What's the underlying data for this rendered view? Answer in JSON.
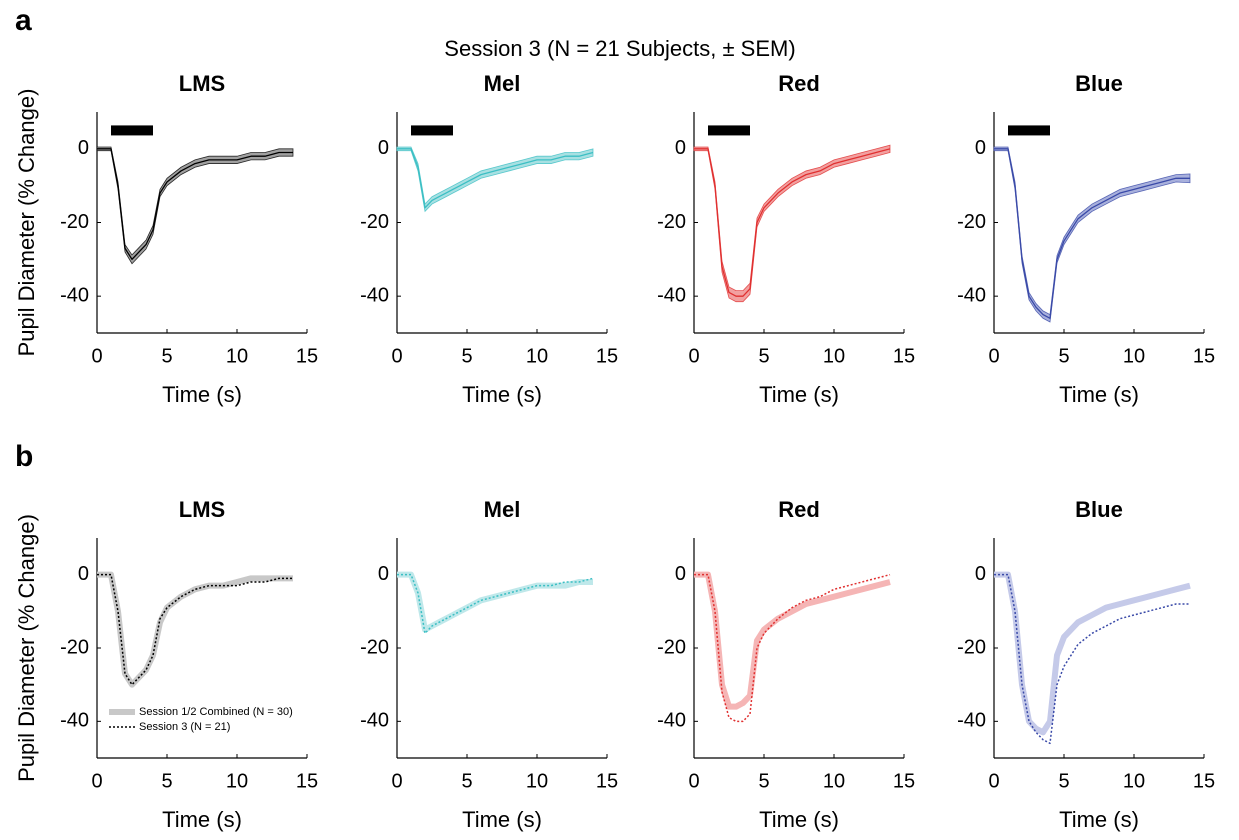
{
  "figure": {
    "title": "Session 3 (N = 21 Subjects, ± SEM)",
    "panel_labels": [
      "a",
      "b"
    ]
  },
  "chart_data": [
    {
      "type": "line",
      "title": "LMS",
      "xlabel": "Time (s)",
      "ylabel": "Pupil Diameter (% Change)",
      "x": [
        0,
        1,
        1.5,
        2,
        2.5,
        3,
        3.5,
        4,
        4.5,
        5,
        6,
        7,
        8,
        9,
        10,
        11,
        12,
        13,
        14
      ],
      "xlim": [
        0,
        15
      ],
      "xticks": [
        0,
        5,
        10,
        15
      ],
      "ylim": [
        -50,
        10
      ],
      "yticks": [
        -40,
        -20,
        0
      ],
      "stimulus": {
        "x": [
          1,
          4
        ],
        "y": 5
      },
      "series": [
        {
          "color": "#000000",
          "band_color": "#a0a0a0",
          "linestyle": "solid",
          "values": [
            0,
            0,
            -10,
            -27,
            -30,
            -28,
            -26,
            -22,
            -12,
            -9,
            -6,
            -4,
            -3,
            -3,
            -3,
            -2,
            -2,
            -1,
            -1
          ],
          "error": [
            0.5,
            0.5,
            1,
            1,
            1.2,
            1.2,
            1.2,
            1.2,
            1,
            1,
            1,
            1,
            1,
            1,
            1,
            1,
            1,
            1,
            1
          ]
        }
      ]
    },
    {
      "type": "line",
      "title": "Mel",
      "xlabel": "Time (s)",
      "x": [
        0,
        1,
        1.5,
        2,
        2.5,
        3,
        3.5,
        4,
        4.5,
        5,
        6,
        7,
        8,
        9,
        10,
        11,
        12,
        13,
        14
      ],
      "xlim": [
        0,
        15
      ],
      "xticks": [
        0,
        5,
        10,
        15
      ],
      "ylim": [
        -50,
        10
      ],
      "yticks": [
        -40,
        -20,
        0
      ],
      "stimulus": {
        "x": [
          1,
          4
        ],
        "y": 5
      },
      "series": [
        {
          "color": "#3bbfc4",
          "band_color": "#a8e0e2",
          "linestyle": "solid",
          "values": [
            0,
            0,
            -5,
            -16,
            -14,
            -13,
            -12,
            -11,
            -10,
            -9,
            -7,
            -6,
            -5,
            -4,
            -3,
            -3,
            -2,
            -2,
            -1
          ],
          "error": [
            0.5,
            0.5,
            1,
            1,
            1,
            1,
            1,
            1,
            1,
            1,
            1,
            1,
            1,
            1,
            1,
            1,
            1,
            1,
            1
          ]
        }
      ]
    },
    {
      "type": "line",
      "title": "Red",
      "xlabel": "Time (s)",
      "x": [
        0,
        1,
        1.5,
        2,
        2.5,
        3,
        3.5,
        4,
        4.5,
        5,
        6,
        7,
        8,
        9,
        10,
        11,
        12,
        13,
        14
      ],
      "xlim": [
        0,
        15
      ],
      "xticks": [
        0,
        5,
        10,
        15
      ],
      "ylim": [
        -50,
        10
      ],
      "yticks": [
        -40,
        -20,
        0
      ],
      "stimulus": {
        "x": [
          1,
          4
        ],
        "y": 5
      },
      "series": [
        {
          "color": "#e03030",
          "band_color": "#f2a0a0",
          "linestyle": "solid",
          "values": [
            0,
            0,
            -10,
            -32,
            -39,
            -40,
            -40,
            -38,
            -20,
            -16,
            -12,
            -9,
            -7,
            -6,
            -4,
            -3,
            -2,
            -1,
            0
          ],
          "error": [
            0.5,
            0.5,
            1,
            1.5,
            1.5,
            1.5,
            1.5,
            1.5,
            1.2,
            1,
            1,
            1,
            1,
            1,
            1,
            1,
            1,
            1,
            1
          ]
        }
      ]
    },
    {
      "type": "line",
      "title": "Blue",
      "xlabel": "Time (s)",
      "x": [
        0,
        1,
        1.5,
        2,
        2.5,
        3,
        3.5,
        4,
        4.5,
        5,
        6,
        7,
        8,
        9,
        10,
        11,
        12,
        13,
        14
      ],
      "xlim": [
        0,
        15
      ],
      "xticks": [
        0,
        5,
        10,
        15
      ],
      "ylim": [
        -50,
        10
      ],
      "yticks": [
        -40,
        -20,
        0
      ],
      "stimulus": {
        "x": [
          1,
          4
        ],
        "y": 5
      },
      "series": [
        {
          "color": "#3a4aa8",
          "band_color": "#a8b0dc",
          "linestyle": "solid",
          "values": [
            0,
            0,
            -10,
            -30,
            -40,
            -43,
            -45,
            -46,
            -30,
            -25,
            -19,
            -16,
            -14,
            -12,
            -11,
            -10,
            -9,
            -8,
            -8
          ],
          "error": [
            0.5,
            0.5,
            1,
            1,
            1,
            1,
            1,
            1,
            1,
            1,
            1,
            1,
            1,
            1,
            1,
            1,
            1,
            1,
            1.2
          ]
        }
      ]
    },
    {
      "type": "line",
      "title": "LMS",
      "xlabel": "Time (s)",
      "ylabel": "Pupil Diameter (% Change)",
      "x": [
        0,
        1,
        1.5,
        2,
        2.5,
        3,
        3.5,
        4,
        4.5,
        5,
        6,
        7,
        8,
        9,
        10,
        11,
        12,
        13,
        14
      ],
      "xlim": [
        0,
        15
      ],
      "xticks": [
        0,
        5,
        10,
        15
      ],
      "ylim": [
        -50,
        10
      ],
      "yticks": [
        -40,
        -20,
        0
      ],
      "legend": "lower left",
      "series": [
        {
          "name": "Session 1/2 Combined (N = 30)",
          "color": "#c8c8c8",
          "linestyle": "thick",
          "values": [
            0,
            0,
            -10,
            -27,
            -30,
            -28,
            -26,
            -22,
            -13,
            -9,
            -6,
            -4,
            -3,
            -3,
            -2,
            -1,
            -1,
            -1,
            -1
          ]
        },
        {
          "name": "Session 3 (N = 21)",
          "color": "#000000",
          "linestyle": "dotted",
          "values": [
            0,
            0,
            -10,
            -27,
            -30,
            -28,
            -26,
            -22,
            -12,
            -9,
            -6,
            -4,
            -3,
            -3,
            -3,
            -2,
            -2,
            -1,
            -1
          ]
        }
      ]
    },
    {
      "type": "line",
      "title": "Mel",
      "xlabel": "Time (s)",
      "x": [
        0,
        1,
        1.5,
        2,
        2.5,
        3,
        3.5,
        4,
        4.5,
        5,
        6,
        7,
        8,
        9,
        10,
        11,
        12,
        13,
        14
      ],
      "xlim": [
        0,
        15
      ],
      "xticks": [
        0,
        5,
        10,
        15
      ],
      "ylim": [
        -50,
        10
      ],
      "yticks": [
        -40,
        -20,
        0
      ],
      "series": [
        {
          "color": "#bfe8ea",
          "linestyle": "thick",
          "values": [
            0,
            0,
            -5,
            -15,
            -14,
            -13,
            -12,
            -11,
            -10,
            -9,
            -7,
            -6,
            -5,
            -4,
            -3,
            -3,
            -3,
            -2,
            -2
          ]
        },
        {
          "color": "#3bbfc4",
          "linestyle": "dotted",
          "values": [
            0,
            0,
            -5,
            -16,
            -14,
            -13,
            -12,
            -11,
            -10,
            -9,
            -7,
            -6,
            -5,
            -4,
            -3,
            -3,
            -2,
            -2,
            -1
          ]
        }
      ]
    },
    {
      "type": "line",
      "title": "Red",
      "xlabel": "Time (s)",
      "x": [
        0,
        1,
        1.5,
        2,
        2.5,
        3,
        3.5,
        4,
        4.5,
        5,
        6,
        7,
        8,
        9,
        10,
        11,
        12,
        13,
        14
      ],
      "xlim": [
        0,
        15
      ],
      "xticks": [
        0,
        5,
        10,
        15
      ],
      "ylim": [
        -50,
        10
      ],
      "yticks": [
        -40,
        -20,
        0
      ],
      "series": [
        {
          "color": "#f5b5b5",
          "linestyle": "thick",
          "values": [
            0,
            0,
            -10,
            -30,
            -36,
            -36,
            -35,
            -33,
            -18,
            -15,
            -12,
            -10,
            -8,
            -7,
            -6,
            -5,
            -4,
            -3,
            -2
          ]
        },
        {
          "color": "#e03030",
          "linestyle": "dotted",
          "values": [
            0,
            0,
            -10,
            -32,
            -39,
            -40,
            -40,
            -38,
            -20,
            -16,
            -12,
            -9,
            -7,
            -6,
            -4,
            -3,
            -2,
            -1,
            0
          ]
        }
      ]
    },
    {
      "type": "line",
      "title": "Blue",
      "xlabel": "Time (s)",
      "x": [
        0,
        1,
        1.5,
        2,
        2.5,
        3,
        3.5,
        4,
        4.5,
        5,
        6,
        7,
        8,
        9,
        10,
        11,
        12,
        13,
        14
      ],
      "xlim": [
        0,
        15
      ],
      "xticks": [
        0,
        5,
        10,
        15
      ],
      "ylim": [
        -50,
        10
      ],
      "yticks": [
        -40,
        -20,
        0
      ],
      "series": [
        {
          "color": "#c5cae9",
          "linestyle": "thick",
          "values": [
            0,
            0,
            -10,
            -30,
            -40,
            -42,
            -43,
            -40,
            -22,
            -17,
            -13,
            -11,
            -9,
            -8,
            -7,
            -6,
            -5,
            -4,
            -3
          ]
        },
        {
          "color": "#3a4aa8",
          "linestyle": "dotted",
          "values": [
            0,
            0,
            -10,
            -30,
            -40,
            -43,
            -45,
            -46,
            -30,
            -25,
            -19,
            -16,
            -14,
            -12,
            -11,
            -10,
            -9,
            -8,
            -8
          ]
        }
      ]
    }
  ]
}
